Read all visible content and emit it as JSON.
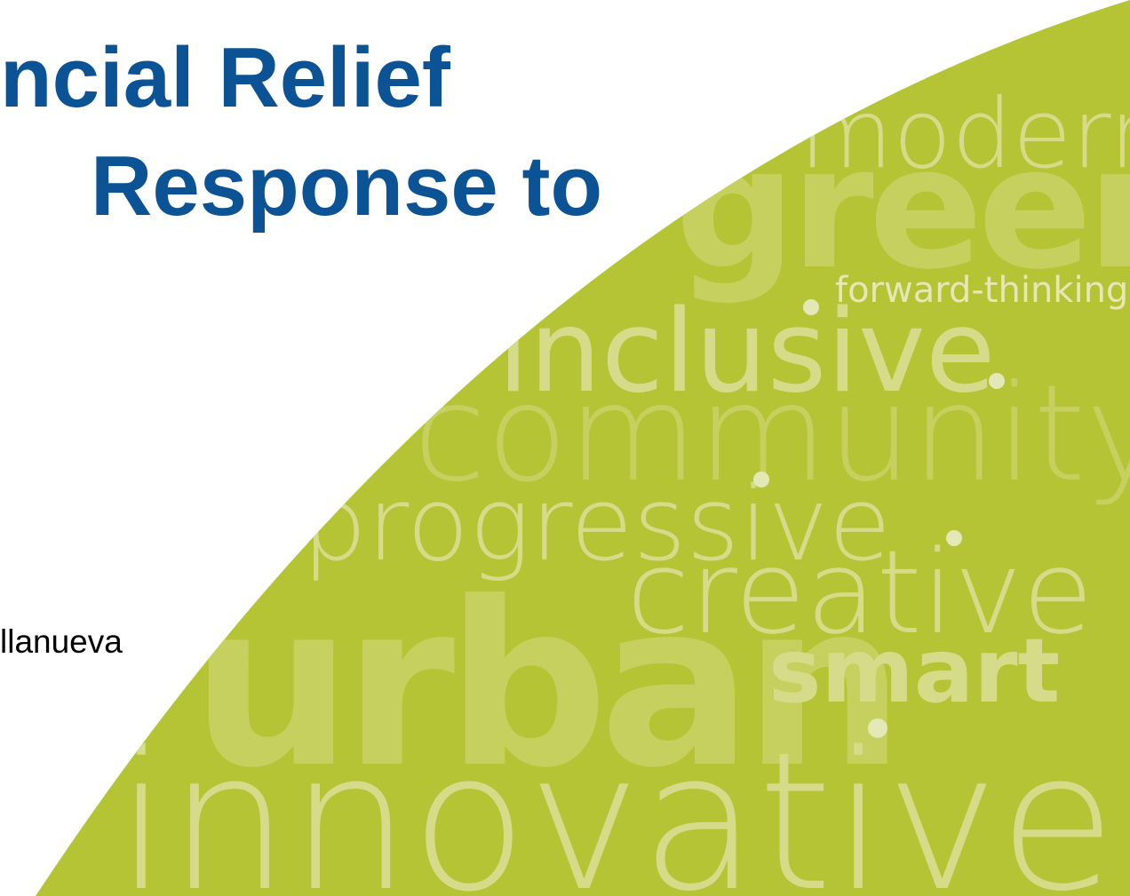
{
  "title": {
    "line1": "ncial Relief",
    "line2": "Response to"
  },
  "presenter": {
    "name": "llanueva"
  },
  "word_cloud": {
    "words": {
      "modern": "modern",
      "green": "green",
      "forward_thinking": "forward-thinking",
      "inclusive": "inclusive",
      "community": "community",
      "progressive": "progressive",
      "creative": "creative",
      "urban": "urban",
      "smart": "smart",
      "innovative": "innovative"
    }
  },
  "colors": {
    "title": "#0b5394",
    "presenter": "#000000",
    "green_panel": "#b5c434",
    "word_light": "#d4dc8a",
    "word_mid": "#c6d05e"
  }
}
